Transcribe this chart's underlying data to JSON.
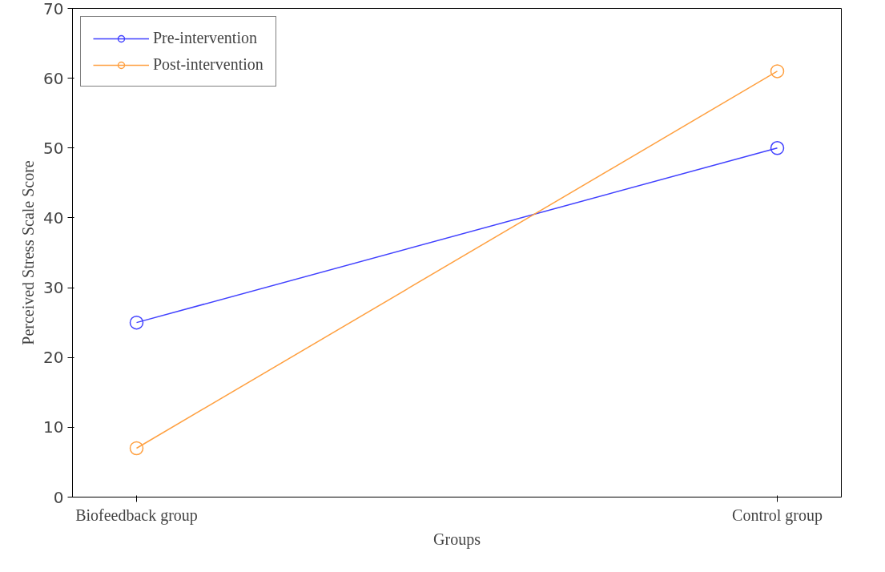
{
  "chart_data": {
    "type": "line",
    "xlabel": "Groups",
    "ylabel": "Perceived Stress Scale Score",
    "categories": [
      "Biofeedback group",
      "Control group"
    ],
    "series": [
      {
        "name": "Pre-intervention",
        "color": "#4040ff",
        "values": [
          25,
          50
        ]
      },
      {
        "name": "Post-intervention",
        "color": "#ffa040",
        "values": [
          7,
          61
        ]
      }
    ],
    "ylim": [
      0,
      70
    ],
    "yticks": [
      0,
      10,
      20,
      30,
      40,
      50,
      60,
      70
    ],
    "grid": false,
    "legend": "top left",
    "marker": "circle",
    "line_style": "solid"
  }
}
